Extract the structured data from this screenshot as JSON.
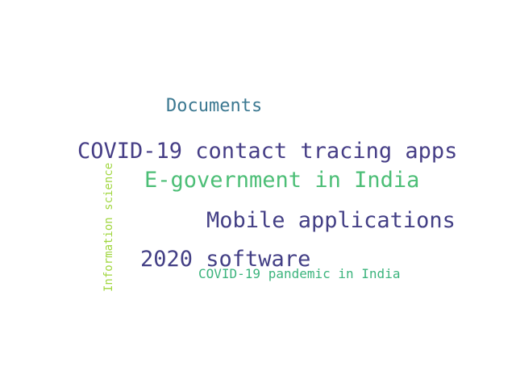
{
  "words": [
    {
      "text": "Documents",
      "color": "#3b7891"
    },
    {
      "text": "COVID-19 contact tracing apps",
      "color": "#463e86"
    },
    {
      "text": "E-government in India",
      "color": "#4cbe76"
    },
    {
      "text": "Mobile applications",
      "color": "#433f85"
    },
    {
      "text": "2020 software",
      "color": "#433f85"
    },
    {
      "text": "COVID-19 pandemic in India",
      "color": "#3cb47d"
    },
    {
      "text": "Information science",
      "color": "#a0d63f"
    }
  ]
}
